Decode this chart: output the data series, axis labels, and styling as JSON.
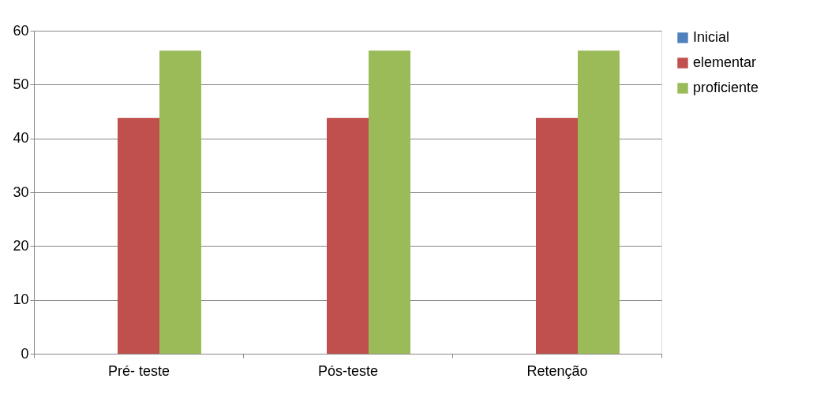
{
  "chart_data": {
    "type": "bar",
    "categories": [
      "Pré- teste",
      "Pós-teste",
      "Retenção"
    ],
    "series": [
      {
        "name": "Inicial",
        "color": "#4f81bd",
        "values": [
          0,
          0,
          0
        ]
      },
      {
        "name": "elementar",
        "color": "#c0504d",
        "values": [
          43.8,
          43.8,
          43.8
        ]
      },
      {
        "name": "proficiente",
        "color": "#9bbb59",
        "values": [
          56.3,
          56.3,
          56.3
        ]
      }
    ],
    "ylim": [
      0,
      60
    ],
    "yticks": [
      0,
      10,
      20,
      30,
      40,
      50,
      60
    ],
    "grid": "y",
    "legend": "right"
  }
}
